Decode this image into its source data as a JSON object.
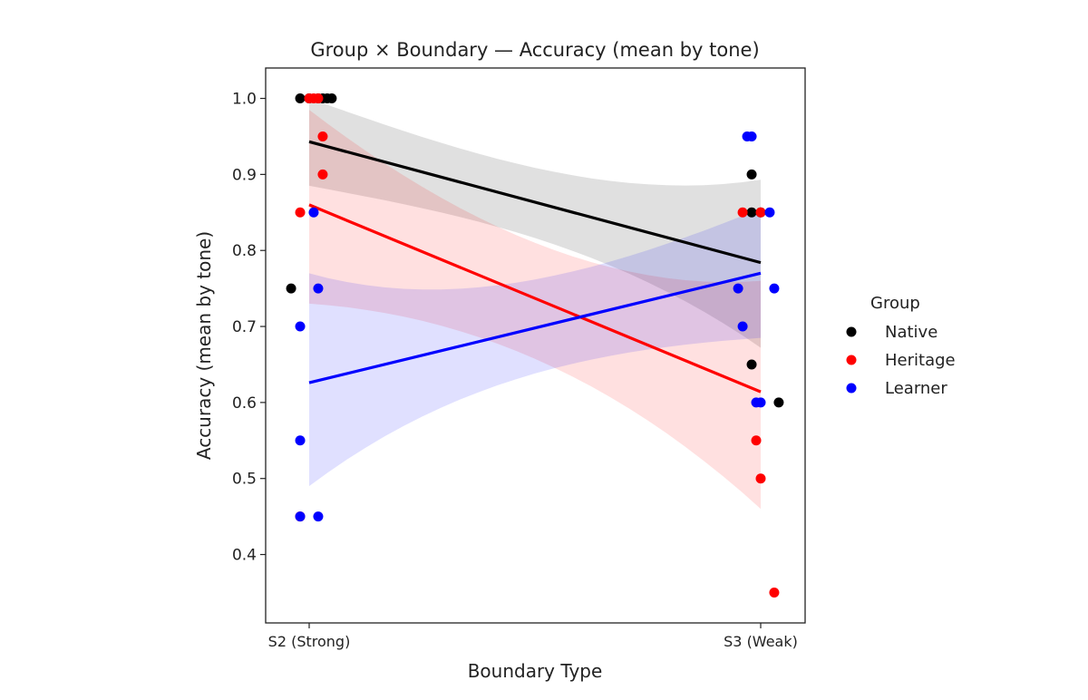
{
  "chart_data": {
    "type": "scatter",
    "title": "Group × Boundary — Accuracy (mean by tone)",
    "xlabel": "Boundary Type",
    "ylabel": "Accuracy (mean by tone)",
    "categories": [
      "S2 (Strong)",
      "S3 (Weak)"
    ],
    "ylim": [
      0.31,
      1.04
    ],
    "yticks": [
      0.4,
      0.5,
      0.6,
      0.7,
      0.8,
      0.9,
      1.0
    ],
    "grid": false,
    "legend": {
      "title": "Group",
      "position": "right-outside"
    },
    "series": [
      {
        "name": "Native",
        "color": "#000000",
        "points": [
          {
            "x": -0.04,
            "y": 0.75
          },
          {
            "x": -0.02,
            "y": 1.0
          },
          {
            "x": 0.0,
            "y": 1.0
          },
          {
            "x": 0.02,
            "y": 1.0
          },
          {
            "x": 0.03,
            "y": 1.0
          },
          {
            "x": 0.04,
            "y": 1.0
          },
          {
            "x": 0.05,
            "y": 1.0
          },
          {
            "x": 0.98,
            "y": 0.9
          },
          {
            "x": 0.98,
            "y": 0.85
          },
          {
            "x": 1.0,
            "y": 0.85
          },
          {
            "x": 0.98,
            "y": 0.65
          },
          {
            "x": 1.04,
            "y": 0.6
          }
        ],
        "fit": {
          "y_start": 0.943,
          "y_end": 0.784,
          "ci_start": [
            0.885,
            1.0
          ],
          "ci_end": [
            0.672,
            0.893
          ]
        }
      },
      {
        "name": "Heritage",
        "color": "#ff0000",
        "points": [
          {
            "x": -0.02,
            "y": 0.85
          },
          {
            "x": -0.02,
            "y": 0.45
          },
          {
            "x": 0.0,
            "y": 1.0
          },
          {
            "x": 0.01,
            "y": 1.0
          },
          {
            "x": 0.02,
            "y": 1.0
          },
          {
            "x": 0.03,
            "y": 0.95
          },
          {
            "x": 0.03,
            "y": 0.9
          },
          {
            "x": 0.96,
            "y": 0.85
          },
          {
            "x": 1.0,
            "y": 0.85
          },
          {
            "x": 0.99,
            "y": 0.55
          },
          {
            "x": 1.0,
            "y": 0.5
          },
          {
            "x": 1.03,
            "y": 0.35
          }
        ],
        "fit": {
          "y_start": 0.86,
          "y_end": 0.614,
          "ci_start": [
            0.73,
            0.985
          ],
          "ci_end": [
            0.46,
            0.76
          ]
        }
      },
      {
        "name": "Learner",
        "color": "#0000ff",
        "points": [
          {
            "x": -0.02,
            "y": 0.7
          },
          {
            "x": -0.02,
            "y": 0.55
          },
          {
            "x": -0.02,
            "y": 0.45
          },
          {
            "x": 0.02,
            "y": 0.45
          },
          {
            "x": 0.01,
            "y": 0.85
          },
          {
            "x": 0.02,
            "y": 0.75
          },
          {
            "x": 0.97,
            "y": 0.95
          },
          {
            "x": 0.98,
            "y": 0.95
          },
          {
            "x": 1.02,
            "y": 0.85
          },
          {
            "x": 0.95,
            "y": 0.75
          },
          {
            "x": 1.03,
            "y": 0.75
          },
          {
            "x": 0.96,
            "y": 0.7
          },
          {
            "x": 0.99,
            "y": 0.6
          },
          {
            "x": 1.0,
            "y": 0.6
          }
        ],
        "fit": {
          "y_start": 0.626,
          "y_end": 0.77,
          "ci_start": [
            0.49,
            0.77
          ],
          "ci_end": [
            0.685,
            0.855
          ]
        }
      }
    ]
  }
}
